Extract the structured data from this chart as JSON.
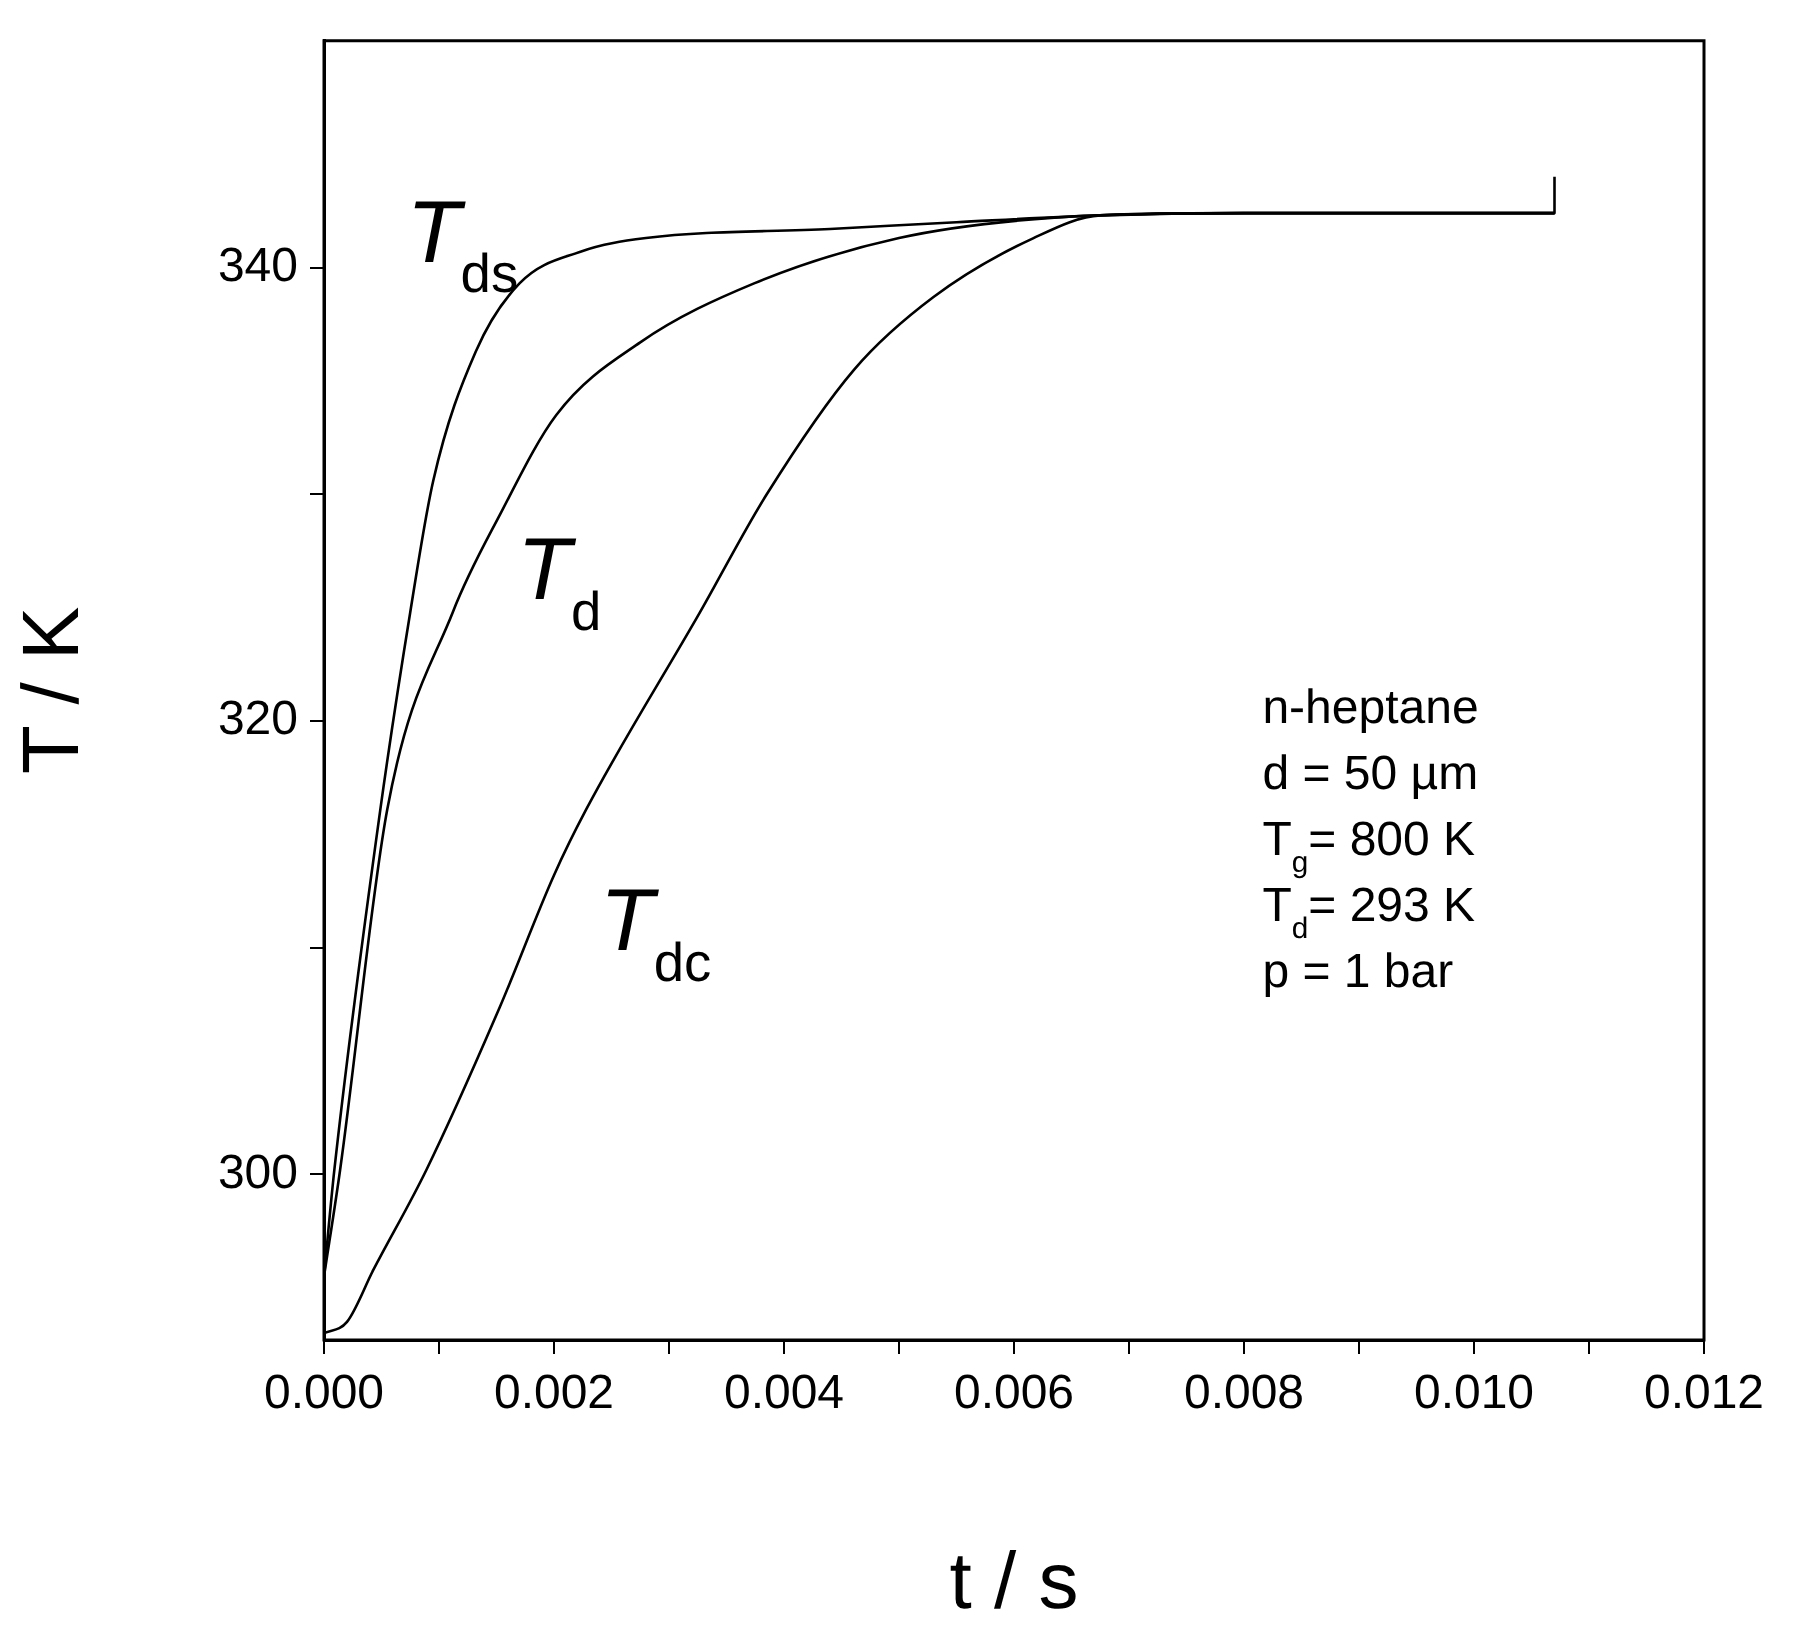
{
  "chart_data": {
    "type": "line",
    "xlabel": "t / s",
    "ylabel": "T / K",
    "xlim": [
      0,
      0.012
    ],
    "ylim": [
      292.7,
      350
    ],
    "xticks": [
      {
        "value": 0,
        "label": "0.000"
      },
      {
        "value": 0.001,
        "label": null
      },
      {
        "value": 0.002,
        "label": "0.002"
      },
      {
        "value": 0.003,
        "label": null
      },
      {
        "value": 0.004,
        "label": "0.004"
      },
      {
        "value": 0.005,
        "label": null
      },
      {
        "value": 0.006,
        "label": "0.006"
      },
      {
        "value": 0.007,
        "label": null
      },
      {
        "value": 0.008,
        "label": "0.008"
      },
      {
        "value": 0.009,
        "label": null
      },
      {
        "value": 0.01,
        "label": "0.010"
      },
      {
        "value": 0.011,
        "label": null
      },
      {
        "value": 0.012,
        "label": "0.012"
      }
    ],
    "yticks": [
      300,
      {
        "value": 310,
        "label": null
      },
      320,
      {
        "value": 330,
        "label": null
      },
      340
    ],
    "grid": false,
    "legend": false,
    "marker": "none",
    "line_style": "solid",
    "annotations": [
      "n-heptane",
      "d = 50 µm",
      "T$_{g}$= 800 K",
      "T$_{d}$= 293 K",
      "p = 1 bar"
    ],
    "series": [
      {
        "name": "T$_{ds}$",
        "color": "#000000",
        "x": [
          0,
          9e-05,
          0.00049,
          0.00075,
          0.00095,
          0.00132,
          0.0017,
          0.00223,
          0.0028,
          0.0044,
          0.0055,
          0.00675,
          0.008,
          0.0107
        ],
        "values": [
          295.5,
          300.2,
          316.1,
          324.8,
          330.6,
          336.3,
          339.3,
          340.7,
          341.3,
          341.7,
          342.0,
          342.3,
          342.4,
          342.4
        ]
      },
      {
        "name": "T$_{d}$",
        "color": "#000000",
        "x": [
          0,
          0.00014,
          0.00055,
          0.00112,
          0.00153,
          0.00202,
          0.00275,
          0.00374,
          0.005,
          0.00635,
          0.008,
          0.0107,
          0.0107
        ],
        "values": [
          295.5,
          300.2,
          316.1,
          324.8,
          329.1,
          333.5,
          336.7,
          339.3,
          341.3,
          342.2,
          342.4,
          342.4,
          344.0
        ]
      },
      {
        "name": "T$_{dc}$",
        "color": "#000000",
        "x": [
          0,
          0.0002,
          0.00043,
          0.00089,
          0.00153,
          0.002,
          0.00228,
          0.00327,
          0.00385,
          0.00461,
          0.0053,
          0.00617,
          0.00675,
          0.008,
          0.0107
        ],
        "values": [
          293,
          293.5,
          295.8,
          300.2,
          307.4,
          313.2,
          316.1,
          324.8,
          330,
          335.5,
          338.7,
          341.3,
          342.3,
          342.4,
          342.4
        ]
      }
    ]
  }
}
